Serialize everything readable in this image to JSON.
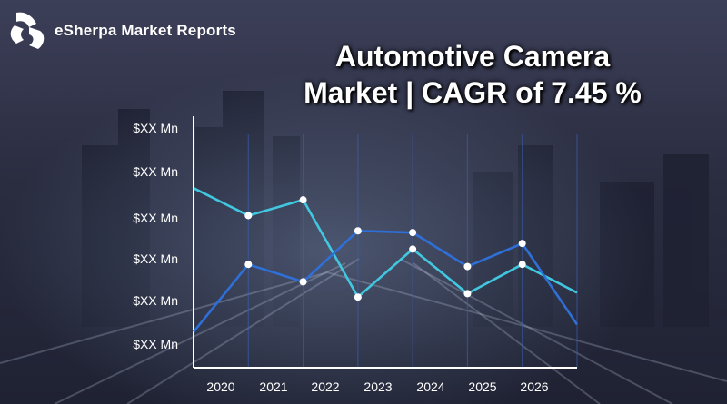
{
  "brand": {
    "name": "eSherpa Market Reports",
    "logo_icon": "esherpa-logo-icon"
  },
  "headline": {
    "line1": "Automotive Camera",
    "line2": "Market | CAGR of 7.45 %"
  },
  "colors": {
    "series_a": "#41c8e0",
    "series_b": "#2f6fd8",
    "axis": "#ffffff",
    "point": "#ffffff"
  },
  "chart_data": {
    "type": "line",
    "title": "",
    "xlabel": "",
    "ylabel": "",
    "x_tick_labels": [
      "2020",
      "2021",
      "2022",
      "2023",
      "2024",
      "2025",
      "2026"
    ],
    "y_tick_labels": [
      "$XX Mn",
      "$XX Mn",
      "$XX Mn",
      "$XX Mn",
      "$XX Mn",
      "$XX Mn"
    ],
    "grid": "vertical lines at year markers",
    "legend": "none",
    "ylim": [
      0,
      5
    ],
    "x": [
      2019.5,
      2020.5,
      2021.5,
      2022.5,
      2023.5,
      2024.5,
      2025.5,
      2026.5
    ],
    "series": [
      {
        "values": [
          3.6,
          2.97,
          3.33,
          1.1,
          2.2,
          1.18,
          1.85,
          1.2
        ]
      },
      {
        "values": [
          0.3,
          1.85,
          1.45,
          2.62,
          2.58,
          1.8,
          2.33,
          0.47
        ]
      }
    ],
    "markers_on_points": [
      1,
      2,
      3,
      4,
      5,
      6
    ]
  }
}
